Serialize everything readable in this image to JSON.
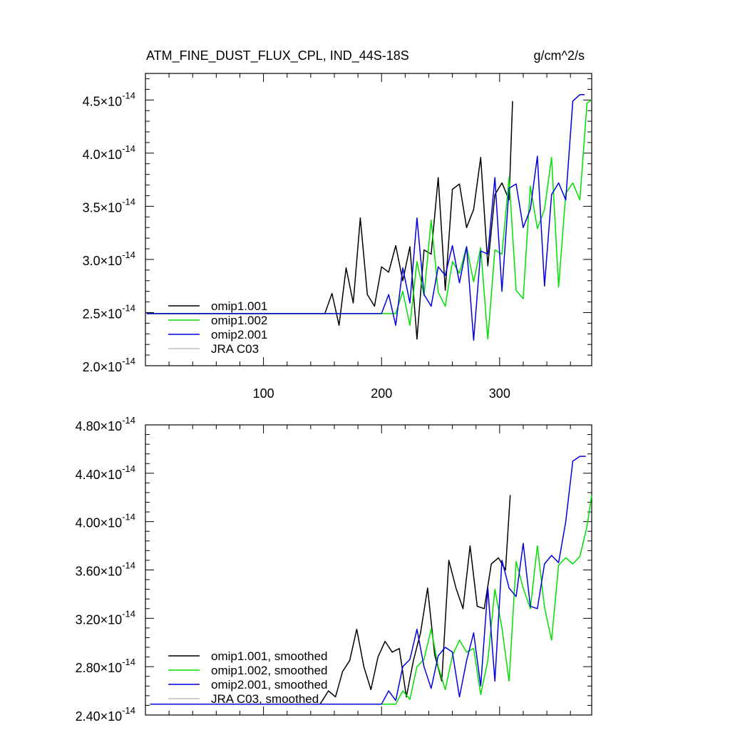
{
  "chart_data": [
    {
      "type": "line",
      "title": "ATM_FINE_DUST_FLUX_CPL, IND_44S-18S",
      "units": "g/cm^2/s",
      "xlim": [
        0,
        378
      ],
      "ylim": [
        2e-14,
        4.75e-14
      ],
      "xticks": [
        100,
        200,
        300
      ],
      "xtick_labels": [
        "100",
        "200",
        "300"
      ],
      "yticks": [
        2e-14,
        2.5e-14,
        3e-14,
        3.5e-14,
        4e-14,
        4.5e-14
      ],
      "ytick_mantissas": [
        "2.0",
        "2.5",
        "3.0",
        "3.5",
        "4.0",
        "4.5"
      ],
      "ytick_exponent": "-14",
      "legend_position": "lower-left",
      "series": [
        {
          "name": "omip1.001",
          "color": "#000000",
          "x": [
            1,
            152,
            158,
            164,
            170,
            176,
            182,
            188,
            194,
            200,
            206,
            212,
            218,
            224,
            230,
            236,
            242,
            248,
            254,
            260,
            266,
            272,
            278,
            284,
            290,
            296,
            302,
            308,
            311
          ],
          "y": [
            2.49e-14,
            2.49e-14,
            2.68e-14,
            2.38e-14,
            2.92e-14,
            2.59e-14,
            3.39e-14,
            2.67e-14,
            2.56e-14,
            2.93e-14,
            2.88e-14,
            3.13e-14,
            2.8e-14,
            3.12e-14,
            2.25e-14,
            3.09e-14,
            3.05e-14,
            3.77e-14,
            2.71e-14,
            3.66e-14,
            3.71e-14,
            3.3e-14,
            3.47e-14,
            3.96e-14,
            2.94e-14,
            3.61e-14,
            3.72e-14,
            3.56e-14,
            4.49e-14
          ]
        },
        {
          "name": "omip1.002",
          "color": "#00e000",
          "x": [
            1,
            200,
            212,
            218,
            224,
            230,
            236,
            242,
            248,
            254,
            260,
            266,
            272,
            278,
            284,
            290,
            296,
            302,
            308,
            314,
            320,
            326,
            332,
            338,
            344,
            350,
            356,
            362,
            368,
            374,
            378
          ],
          "y": [
            2.49e-14,
            2.49e-14,
            2.49e-14,
            2.7e-14,
            2.38e-14,
            2.98e-14,
            2.66e-14,
            3.37e-14,
            2.69e-14,
            2.56e-14,
            2.98e-14,
            2.87e-14,
            3.12e-14,
            2.79e-14,
            3.11e-14,
            2.25e-14,
            3.09e-14,
            3.05e-14,
            3.77e-14,
            2.71e-14,
            2.63e-14,
            3.69e-14,
            3.29e-14,
            3.47e-14,
            3.96e-14,
            2.74e-14,
            3.62e-14,
            3.72e-14,
            3.56e-14,
            4.47e-14,
            4.5e-14
          ]
        },
        {
          "name": "omip2.001",
          "color": "#0000e0",
          "x": [
            1,
            200,
            206,
            212,
            218,
            224,
            230,
            236,
            242,
            248,
            254,
            260,
            266,
            272,
            278,
            284,
            290,
            296,
            302,
            308,
            314,
            320,
            326,
            332,
            338,
            344,
            350,
            356,
            362,
            368,
            372
          ],
          "y": [
            2.49e-14,
            2.49e-14,
            2.67e-14,
            2.38e-14,
            2.92e-14,
            2.59e-14,
            3.39e-14,
            2.67e-14,
            2.56e-14,
            2.93e-14,
            2.85e-14,
            3.13e-14,
            2.78e-14,
            3.12e-14,
            2.24e-14,
            3.08e-14,
            3.05e-14,
            3.77e-14,
            2.7e-14,
            3.67e-14,
            3.71e-14,
            3.3e-14,
            3.47e-14,
            3.97e-14,
            2.75e-14,
            3.61e-14,
            3.72e-14,
            3.56e-14,
            4.49e-14,
            4.55e-14,
            4.55e-14
          ]
        },
        {
          "name": "JRA C03",
          "color": "#bdbdbd",
          "x": [],
          "y": []
        }
      ]
    },
    {
      "type": "line",
      "title": "",
      "xlim": [
        0,
        378
      ],
      "ylim": [
        2.4e-14,
        4.8e-14
      ],
      "xticks": [
        100,
        200,
        300
      ],
      "yticks": [
        2.4e-14,
        2.8e-14,
        3.2e-14,
        3.6e-14,
        4e-14,
        4.4e-14,
        4.8e-14
      ],
      "ytick_mantissas": [
        "2.40",
        "2.80",
        "3.20",
        "3.60",
        "4.00",
        "4.40",
        "4.80"
      ],
      "ytick_exponent": "-14",
      "legend_position": "lower-left",
      "series": [
        {
          "name": "omip1.001, smoothed",
          "color": "#000000",
          "x": [
            4,
            148,
            155,
            161,
            167,
            173,
            179,
            185,
            191,
            197,
            203,
            209,
            215,
            221,
            227,
            233,
            239,
            245,
            251,
            257,
            263,
            269,
            275,
            281,
            287,
            293,
            299,
            305,
            309
          ],
          "y": [
            2.49e-14,
            2.49e-14,
            2.6e-14,
            2.55e-14,
            2.76e-14,
            2.85e-14,
            3.11e-14,
            2.8e-14,
            2.61e-14,
            2.88e-14,
            3.01e-14,
            2.92e-14,
            2.95e-14,
            2.55e-14,
            2.85e-14,
            3.08e-14,
            3.45e-14,
            2.9e-14,
            2.68e-14,
            3.68e-14,
            3.45e-14,
            3.28e-14,
            3.8e-14,
            3.3e-14,
            3.28e-14,
            3.65e-14,
            3.7e-14,
            3.6e-14,
            4.22e-14
          ]
        },
        {
          "name": "omip1.002, smoothed",
          "color": "#00e000",
          "x": [
            4,
            212,
            218,
            224,
            230,
            236,
            242,
            248,
            254,
            260,
            266,
            272,
            278,
            284,
            290,
            296,
            302,
            308,
            314,
            320,
            326,
            332,
            338,
            344,
            350,
            356,
            362,
            368,
            374,
            378
          ],
          "y": [
            2.49e-14,
            2.49e-14,
            2.6e-14,
            2.53e-14,
            2.8e-14,
            2.86e-14,
            3.11e-14,
            2.8e-14,
            2.61e-14,
            2.89e-14,
            3.02e-14,
            2.92e-14,
            2.95e-14,
            2.57e-14,
            2.85e-14,
            3.44e-14,
            3.12e-14,
            2.68e-14,
            3.67e-14,
            3.45e-14,
            3.28e-14,
            3.8e-14,
            3.29e-14,
            3.02e-14,
            3.64e-14,
            3.7e-14,
            3.65e-14,
            3.71e-14,
            3.96e-14,
            4.22e-14
          ]
        },
        {
          "name": "omip2.001, smoothed",
          "color": "#0000e0",
          "x": [
            4,
            200,
            206,
            212,
            218,
            224,
            230,
            236,
            242,
            248,
            254,
            260,
            266,
            272,
            278,
            284,
            290,
            296,
            302,
            308,
            314,
            320,
            326,
            332,
            338,
            344,
            350,
            356,
            362,
            368,
            373
          ],
          "y": [
            2.49e-14,
            2.49e-14,
            2.6e-14,
            2.52e-14,
            2.8e-14,
            2.86e-14,
            3.11e-14,
            2.8e-14,
            2.62e-14,
            2.89e-14,
            2.96e-14,
            2.92e-14,
            2.55e-14,
            2.85e-14,
            3.08e-14,
            2.64e-14,
            3.45e-14,
            2.68e-14,
            3.68e-14,
            3.45e-14,
            3.38e-14,
            3.82e-14,
            3.3e-14,
            3.28e-14,
            3.65e-14,
            3.72e-14,
            3.66e-14,
            4e-14,
            4.5e-14,
            4.54e-14,
            4.54e-14
          ]
        },
        {
          "name": "JRA C03, smoothed",
          "color": "#bdbdbd",
          "x": [],
          "y": []
        }
      ]
    }
  ]
}
